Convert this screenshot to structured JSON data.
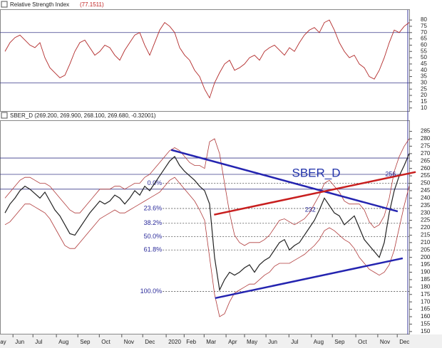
{
  "chart_data": [
    {
      "type": "line",
      "title": "Relative Strength Index",
      "subtitle": "(77.1511)",
      "color": "#b22a2a",
      "values": [
        55,
        62,
        66,
        68,
        64,
        60,
        58,
        62,
        50,
        42,
        38,
        34,
        36,
        45,
        55,
        62,
        64,
        58,
        52,
        55,
        60,
        58,
        52,
        48,
        56,
        62,
        68,
        70,
        60,
        52,
        62,
        72,
        78,
        75,
        70,
        58,
        52,
        48,
        40,
        35,
        25,
        18,
        30,
        38,
        45,
        48,
        40,
        42,
        45,
        50,
        52,
        48,
        55,
        58,
        60,
        56,
        52,
        58,
        55,
        62,
        68,
        72,
        74,
        70,
        78,
        80,
        72,
        62,
        55,
        50,
        52,
        45,
        42,
        35,
        33,
        40,
        50,
        62,
        72,
        70,
        75,
        78
      ],
      "xlim": [
        -1,
        81
      ],
      "ylim": [
        7,
        88
      ],
      "yticks": [
        10,
        15,
        20,
        25,
        30,
        35,
        40,
        45,
        50,
        55,
        60,
        65,
        70,
        75,
        80
      ],
      "hlines": [
        70,
        30
      ]
    },
    {
      "type": "line",
      "title": "SBER_D (269.200, 269.900, 268.100, 269.680, -0.32001)",
      "color": "#222222",
      "band_color": "#b03a3a",
      "values": [
        230,
        236,
        240,
        245,
        248,
        246,
        243,
        240,
        244,
        238,
        232,
        228,
        222,
        216,
        215,
        220,
        225,
        230,
        234,
        238,
        236,
        238,
        242,
        240,
        236,
        240,
        245,
        242,
        248,
        245,
        250,
        255,
        260,
        265,
        268,
        262,
        258,
        255,
        252,
        248,
        245,
        236,
        200,
        178,
        185,
        190,
        188,
        190,
        193,
        195,
        190,
        195,
        198,
        200,
        205,
        210,
        212,
        205,
        208,
        210,
        215,
        220,
        225,
        232,
        240,
        235,
        230,
        228,
        222,
        225,
        228,
        220,
        212,
        208,
        204,
        200,
        210,
        230,
        245,
        255,
        262,
        270
      ],
      "upper_band": [
        240,
        244,
        248,
        252,
        254,
        254,
        252,
        250,
        250,
        248,
        244,
        240,
        236,
        232,
        230,
        230,
        234,
        238,
        242,
        246,
        246,
        246,
        248,
        248,
        246,
        248,
        250,
        250,
        254,
        256,
        260,
        264,
        268,
        272,
        274,
        272,
        268,
        264,
        262,
        262,
        260,
        278,
        280,
        270,
        250,
        230,
        215,
        210,
        208,
        210,
        210,
        210,
        212,
        215,
        220,
        225,
        226,
        224,
        222,
        224,
        226,
        230,
        236,
        242,
        250,
        252,
        248,
        244,
        238,
        236,
        236,
        236,
        232,
        224,
        220,
        222,
        228,
        240,
        258,
        268,
        275,
        280
      ],
      "lower_band": [
        222,
        224,
        228,
        232,
        236,
        236,
        234,
        232,
        230,
        226,
        220,
        214,
        208,
        206,
        206,
        210,
        214,
        218,
        222,
        226,
        228,
        230,
        232,
        230,
        230,
        232,
        234,
        236,
        238,
        240,
        242,
        244,
        248,
        252,
        254,
        250,
        246,
        242,
        238,
        232,
        225,
        200,
        175,
        160,
        162,
        170,
        176,
        178,
        180,
        182,
        182,
        185,
        188,
        190,
        194,
        196,
        196,
        196,
        198,
        200,
        202,
        205,
        208,
        212,
        218,
        220,
        218,
        215,
        212,
        210,
        206,
        200,
        196,
        192,
        190,
        188,
        190,
        195,
        205,
        220,
        235,
        248
      ],
      "xlim": [
        -1,
        81
      ],
      "ylim": [
        148,
        292
      ],
      "yticks": [
        150,
        155,
        160,
        165,
        170,
        175,
        180,
        185,
        190,
        195,
        200,
        205,
        210,
        215,
        220,
        225,
        230,
        235,
        240,
        245,
        250,
        255,
        260,
        265,
        270,
        275,
        280,
        285
      ],
      "xticks": [
        {
          "value": -1.4,
          "label": "ay"
        },
        {
          "value": 1.6,
          "label": "Jun"
        },
        {
          "value": 5.6,
          "label": "Jul"
        },
        {
          "value": 10.3,
          "label": "Aug"
        },
        {
          "value": 14.6,
          "label": "Sep"
        },
        {
          "value": 18.9,
          "label": "Oct"
        },
        {
          "value": 23.4,
          "label": "Nov"
        },
        {
          "value": 27.6,
          "label": "Dec"
        },
        {
          "value": 32.3,
          "label": "2020"
        },
        {
          "value": 35.9,
          "label": "Feb"
        },
        {
          "value": 39.9,
          "label": "Mar"
        },
        {
          "value": 44.3,
          "label": "Apr"
        },
        {
          "value": 48,
          "label": "May"
        },
        {
          "value": 52.3,
          "label": "Jun"
        },
        {
          "value": 56.9,
          "label": "Jul"
        },
        {
          "value": 61.4,
          "label": "Aug"
        },
        {
          "value": 65.6,
          "label": "Sep"
        },
        {
          "value": 70.3,
          "label": "Oct"
        },
        {
          "value": 74.7,
          "label": "Nov"
        },
        {
          "value": 78.6,
          "label": "Dec"
        }
      ],
      "hlines": [
        267,
        256,
        246
      ],
      "fib_x": 31.6,
      "fib_levels": [
        {
          "value": 250,
          "label": "0.0%"
        },
        {
          "value": 233,
          "label": "23.6%"
        },
        {
          "value": 223,
          "label": "38.2%"
        },
        {
          "value": 214,
          "label": "50.0%"
        },
        {
          "value": 205,
          "label": "61.8%"
        },
        {
          "value": 177,
          "label": "100.0%"
        }
      ],
      "price_labels": [
        {
          "x": 76.2,
          "value": 256
        },
        {
          "x": 60.1,
          "value": 232
        }
      ],
      "annotation": {
        "text": "SBER_D",
        "x": 57.5,
        "y": 256.5
      },
      "trendlines": [
        {
          "color": "#2424b0",
          "x": [
            33.3,
            78.7
          ],
          "y": [
            272.5,
            231
          ]
        },
        {
          "color": "#2424b0",
          "x": [
            42.1,
            79.7
          ],
          "y": [
            172.5,
            199.4
          ]
        },
        {
          "color": "#c81e1e",
          "x": [
            41.9,
            82.3
          ],
          "y": [
            228.8,
            257.6
          ]
        }
      ]
    }
  ]
}
